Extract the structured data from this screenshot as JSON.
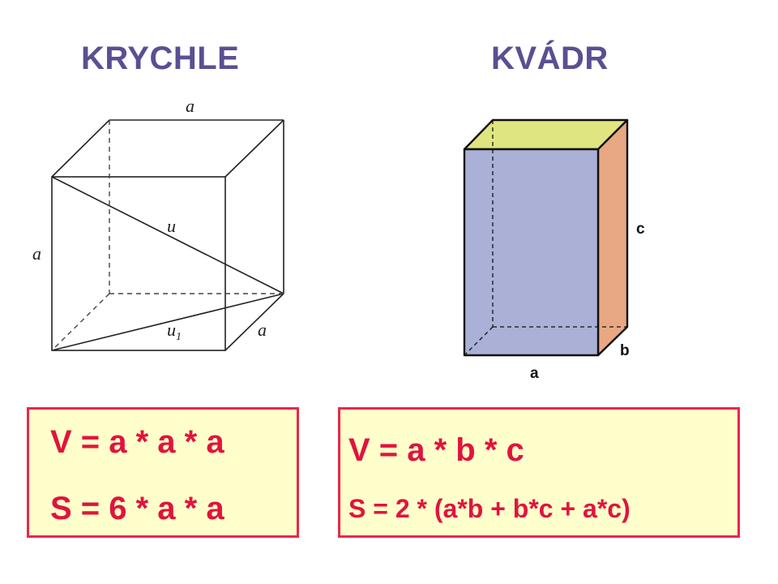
{
  "headings": {
    "cube": "KRYCHLE",
    "cuboid": "KVÁDR"
  },
  "cube_figure": {
    "labels": {
      "edge_top": "a",
      "edge_left": "a",
      "edge_depth": "a",
      "space_diagonal": "u",
      "face_diagonal": "u",
      "face_diagonal_subscript": "1"
    }
  },
  "cuboid_figure": {
    "labels": {
      "a": "a",
      "b": "b",
      "c": "c"
    },
    "colors": {
      "front": "#aab0d6",
      "top": "#dfe680",
      "side": "#e8a883",
      "outline": "#111111"
    }
  },
  "formulas": {
    "cube": {
      "volume": "V = a * a * a",
      "surface": "S = 6 * a * a"
    },
    "cuboid": {
      "volume": "V = a * b * c",
      "surface": "S = 2 * (a*b + b*c + a*c)"
    }
  },
  "colors": {
    "heading": "#5b4f92",
    "formula_text": "#e0143c",
    "formula_border": "#e8284a",
    "formula_background": "#ffffcc"
  }
}
